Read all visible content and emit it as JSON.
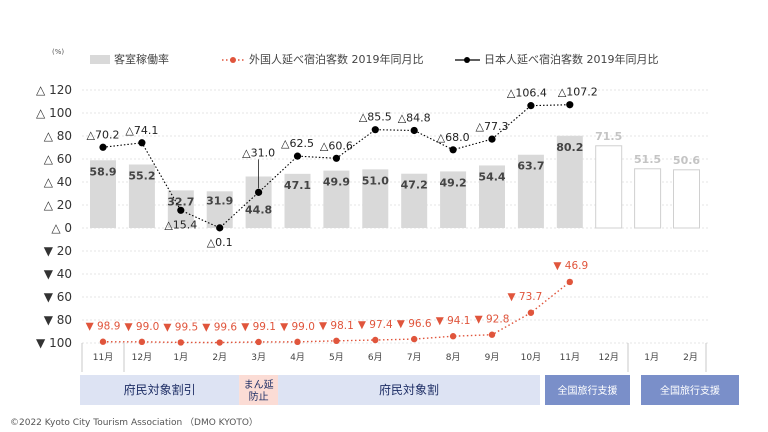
{
  "chart_data": {
    "type": "bar+line",
    "unit_label": "(%)",
    "legend": {
      "occupancy": "客室稼働率",
      "foreign": "外国人延べ宿泊客数 2019年同月比",
      "domestic": "日本人延べ宿泊客数 2019年同月比"
    },
    "y_tick_labels": [
      "△ 120",
      "△ 100",
      "△ 80",
      "△ 60",
      "△ 40",
      "△ 20",
      "△ 0",
      "▼ 20",
      "▼ 40",
      "▼ 60",
      "▼ 80",
      "▼ 100"
    ],
    "y_tick_values": [
      120,
      100,
      80,
      60,
      40,
      20,
      0,
      -20,
      -40,
      -60,
      -80,
      -100
    ],
    "ylim": [
      -100,
      120
    ],
    "months": [
      "11月",
      "12月",
      "1月",
      "2月",
      "3月",
      "4月",
      "5月",
      "6月",
      "7月",
      "8月",
      "9月",
      "10月",
      "11月",
      "12月",
      "1月",
      "2月"
    ],
    "occupancy": {
      "values": [
        58.9,
        55.2,
        32.7,
        31.9,
        44.8,
        47.1,
        49.9,
        51.0,
        47.2,
        49.2,
        54.4,
        63.7,
        80.2,
        71.5,
        51.5,
        50.6
      ],
      "labels": [
        "58.9",
        "55.2",
        "32.7",
        "31.9",
        "44.8",
        "47.1",
        "49.9",
        "51.0",
        "47.2",
        "49.2",
        "54.4",
        "63.7",
        "80.2",
        "71.5",
        "51.5",
        "50.6"
      ],
      "highlight_index": 12,
      "outline_indices": [
        13,
        14,
        15
      ]
    },
    "domestic": {
      "values": [
        70.2,
        74.1,
        15.4,
        0.1,
        31.0,
        62.5,
        60.6,
        85.5,
        84.8,
        68.0,
        77.3,
        106.4,
        107.2
      ],
      "labels": [
        "△70.2",
        "△74.1",
        "△15.4",
        "△0.1",
        "△31.0",
        "△62.5",
        "△60.6",
        "△85.5",
        "△84.8",
        "△68.0",
        "△77.3",
        "△106.4",
        "△107.2"
      ]
    },
    "foreign": {
      "values": [
        -98.9,
        -99.0,
        -99.5,
        -99.6,
        -99.1,
        -99.0,
        -98.1,
        -97.4,
        -96.6,
        -94.1,
        -92.8,
        -73.7,
        -46.9
      ],
      "labels": [
        "▼ 98.9",
        "▼ 99.0",
        "▼ 99.5",
        "▼ 99.6",
        "▼ 99.1",
        "▼ 99.0",
        "▼ 98.1",
        "▼ 97.4",
        "▼ 96.6",
        "▼ 94.1",
        "▼ 92.8",
        "▼ 73.7",
        "▼ 46.9"
      ]
    },
    "bands": [
      {
        "label": "府民対象割引",
        "start": 0,
        "end": 3,
        "style": "light-blue"
      },
      {
        "label": "まん延\n防止",
        "start": 4,
        "end": 4,
        "style": "pink"
      },
      {
        "label": "府民対象割",
        "start": 5,
        "end": 12,
        "style": "light-blue"
      },
      {
        "label": "全国旅行支援",
        "start": 13,
        "end": 13,
        "style": "dark-blue"
      },
      {
        "label": "全国旅行支援",
        "start": 14,
        "end": 15,
        "style": "dark-blue"
      }
    ],
    "colors": {
      "occupancy_bar": "#d9d9d9",
      "foreign_line": "#e0553c",
      "domestic_line": "#000000",
      "band_light": "#dde3f3",
      "band_pink": "#fbdcd5",
      "band_dark": "#7a8fc9"
    }
  },
  "footer": {
    "copyright": "©2022 Kyoto City Tourism Association （DMO KYOTO）"
  }
}
